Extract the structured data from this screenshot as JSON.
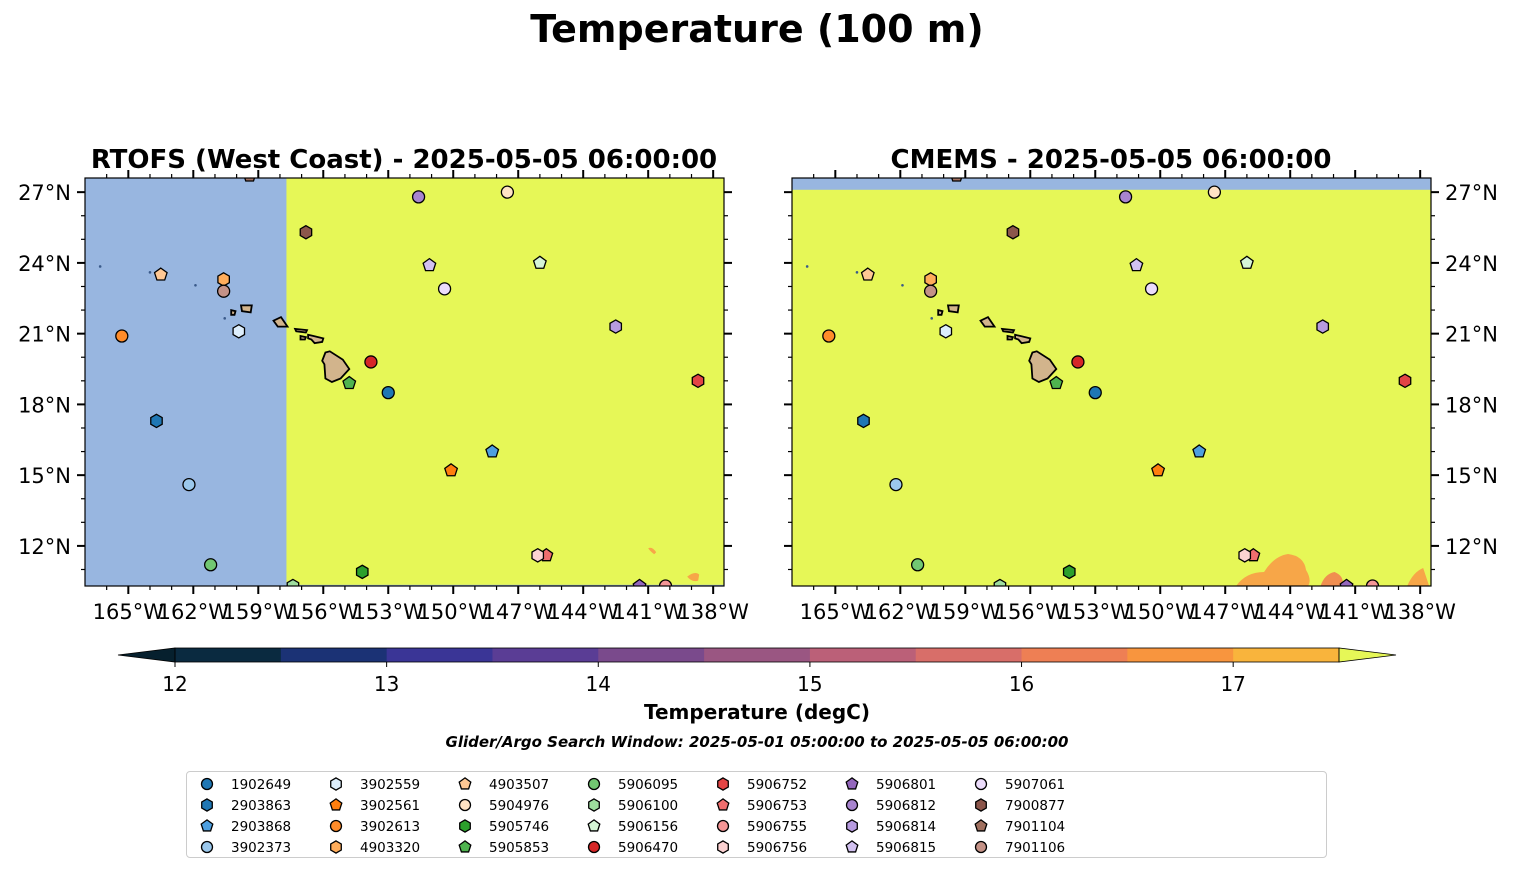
{
  "figure": {
    "title": "Temperature (100 m)",
    "search_window": "Glider/Argo Search Window: 2025-05-01 05:00:00 to 2025-05-05 06:00:00"
  },
  "colors": {
    "land": "#d2b48c",
    "nodata": "#98b6e0",
    "warm": "#e6f757",
    "warm_patch": "#f7a648",
    "warm_patch_dark": "#f08e50"
  },
  "map_extent": {
    "lon": [
      -167,
      -137.5
    ],
    "lat": [
      10.3,
      27.6
    ]
  },
  "maps": [
    {
      "title": "RTOFS (West Coast) - 2025-05-05 06:00:00",
      "data_coverage": {
        "lon_min": -157.7,
        "lat_min": 10.35
      }
    },
    {
      "title": "CMEMS - 2025-05-05 06:00:00",
      "data_coverage": {
        "lat_max": 27.1
      }
    }
  ],
  "x_ticks": [
    {
      "lon": -165,
      "label": "165°W"
    },
    {
      "lon": -162,
      "label": "162°W"
    },
    {
      "lon": -159,
      "label": "159°W"
    },
    {
      "lon": -156,
      "label": "156°W"
    },
    {
      "lon": -153,
      "label": "153°W"
    },
    {
      "lon": -150,
      "label": "150°W"
    },
    {
      "lon": -147,
      "label": "147°W"
    },
    {
      "lon": -144,
      "label": "144°W"
    },
    {
      "lon": -141,
      "label": "141°W"
    },
    {
      "lon": -138,
      "label": "138°W"
    }
  ],
  "y_ticks": [
    {
      "lat": 12,
      "label": "12°N"
    },
    {
      "lat": 15,
      "label": "15°N"
    },
    {
      "lat": 18,
      "label": "18°N"
    },
    {
      "lat": 21,
      "label": "21°N"
    },
    {
      "lat": 24,
      "label": "24°N"
    },
    {
      "lat": 27,
      "label": "27°N"
    }
  ],
  "colorbar": {
    "label": "Temperature (degC)",
    "min": 11.75,
    "max": 17.75,
    "ticks": [
      "12",
      "13",
      "14",
      "15",
      "16",
      "17"
    ],
    "levels": [
      12,
      12.5,
      13,
      13.5,
      14,
      14.5,
      15,
      15.5,
      16,
      16.5,
      17,
      17.5
    ],
    "bin_colors": [
      "#0a2a40",
      "#1b3275",
      "#3a3596",
      "#5a3d95",
      "#7a4a8c",
      "#9a5682",
      "#bb6078",
      "#d86e69",
      "#ee7f54",
      "#f8953e",
      "#f9b43c",
      "#f4d93e"
    ],
    "under_color": "#06202e",
    "over_color": "#e6f757"
  },
  "floats": [
    {
      "id": "1902649",
      "marker": "circle",
      "color": "#1f77b4",
      "lon": -153.0,
      "lat": 18.5
    },
    {
      "id": "2903863",
      "marker": "hexagon",
      "color": "#1f77b4",
      "lon": -163.7,
      "lat": 17.3
    },
    {
      "id": "2903868",
      "marker": "pentagon",
      "color": "#4e9fdf",
      "lon": -148.2,
      "lat": 16.0
    },
    {
      "id": "3902373",
      "marker": "circle",
      "color": "#9bc8ec",
      "lon": -162.2,
      "lat": 14.6
    },
    {
      "id": "3902559",
      "marker": "hexagon",
      "color": "#ddeefc",
      "lon": -159.9,
      "lat": 21.1
    },
    {
      "id": "3902561",
      "marker": "pentagon",
      "color": "#ff7f0e",
      "lon": -150.1,
      "lat": 15.2
    },
    {
      "id": "3902613",
      "marker": "circle",
      "color": "#ff8c2a",
      "lon": -165.3,
      "lat": 20.9
    },
    {
      "id": "4903320",
      "marker": "hexagon",
      "color": "#ffad5b",
      "lon": -160.6,
      "lat": 23.3
    },
    {
      "id": "4903507",
      "marker": "pentagon",
      "color": "#ffc894",
      "lon": -163.5,
      "lat": 23.5
    },
    {
      "id": "5904976",
      "marker": "circle",
      "color": "#ffe3c4",
      "lon": -147.5,
      "lat": 27.0
    },
    {
      "id": "5905746",
      "marker": "hexagon",
      "color": "#2ca02c",
      "lon": -154.2,
      "lat": 10.9
    },
    {
      "id": "5905853",
      "marker": "pentagon",
      "color": "#4fb34f",
      "lon": -154.8,
      "lat": 18.9
    },
    {
      "id": "5906095",
      "marker": "circle",
      "color": "#72c772",
      "lon": -161.2,
      "lat": 11.2
    },
    {
      "id": "5906100",
      "marker": "hexagon",
      "color": "#9edd9e",
      "lon": -157.4,
      "lat": 10.3
    },
    {
      "id": "5906156",
      "marker": "pentagon",
      "color": "#d6f5d6",
      "lon": -146.0,
      "lat": 24.0
    },
    {
      "id": "5906470",
      "marker": "circle",
      "color": "#d62728",
      "lon": -153.8,
      "lat": 19.8
    },
    {
      "id": "5906752",
      "marker": "hexagon",
      "color": "#e34545",
      "lon": -138.7,
      "lat": 19.0
    },
    {
      "id": "5906753",
      "marker": "pentagon",
      "color": "#ef6e6e",
      "lon": -145.7,
      "lat": 11.6
    },
    {
      "id": "5906755",
      "marker": "circle",
      "color": "#f59696",
      "lon": -140.2,
      "lat": 10.3
    },
    {
      "id": "5906756",
      "marker": "hexagon",
      "color": "#fcd2d2",
      "lon": -146.1,
      "lat": 11.6
    },
    {
      "id": "5906801",
      "marker": "pentagon",
      "color": "#9467bd",
      "lon": -141.4,
      "lat": 10.3
    },
    {
      "id": "5906812",
      "marker": "circle",
      "color": "#a884cf",
      "lon": -151.6,
      "lat": 26.8
    },
    {
      "id": "5906814",
      "marker": "hexagon",
      "color": "#b79be0",
      "lon": -142.5,
      "lat": 21.3
    },
    {
      "id": "5906815",
      "marker": "pentagon",
      "color": "#d2c1f0",
      "lon": -151.1,
      "lat": 23.9
    },
    {
      "id": "5907061",
      "marker": "circle",
      "color": "#ecdcfb",
      "lon": -150.4,
      "lat": 22.9
    },
    {
      "id": "7900877",
      "marker": "hexagon",
      "color": "#8c564b",
      "lon": -156.8,
      "lat": 25.3
    },
    {
      "id": "7901104",
      "marker": "pentagon",
      "color": "#a0705f",
      "lon": -159.4,
      "lat": 27.7
    },
    {
      "id": "7901106",
      "marker": "circle",
      "color": "#c49287",
      "lon": -160.6,
      "lat": 22.8
    }
  ]
}
